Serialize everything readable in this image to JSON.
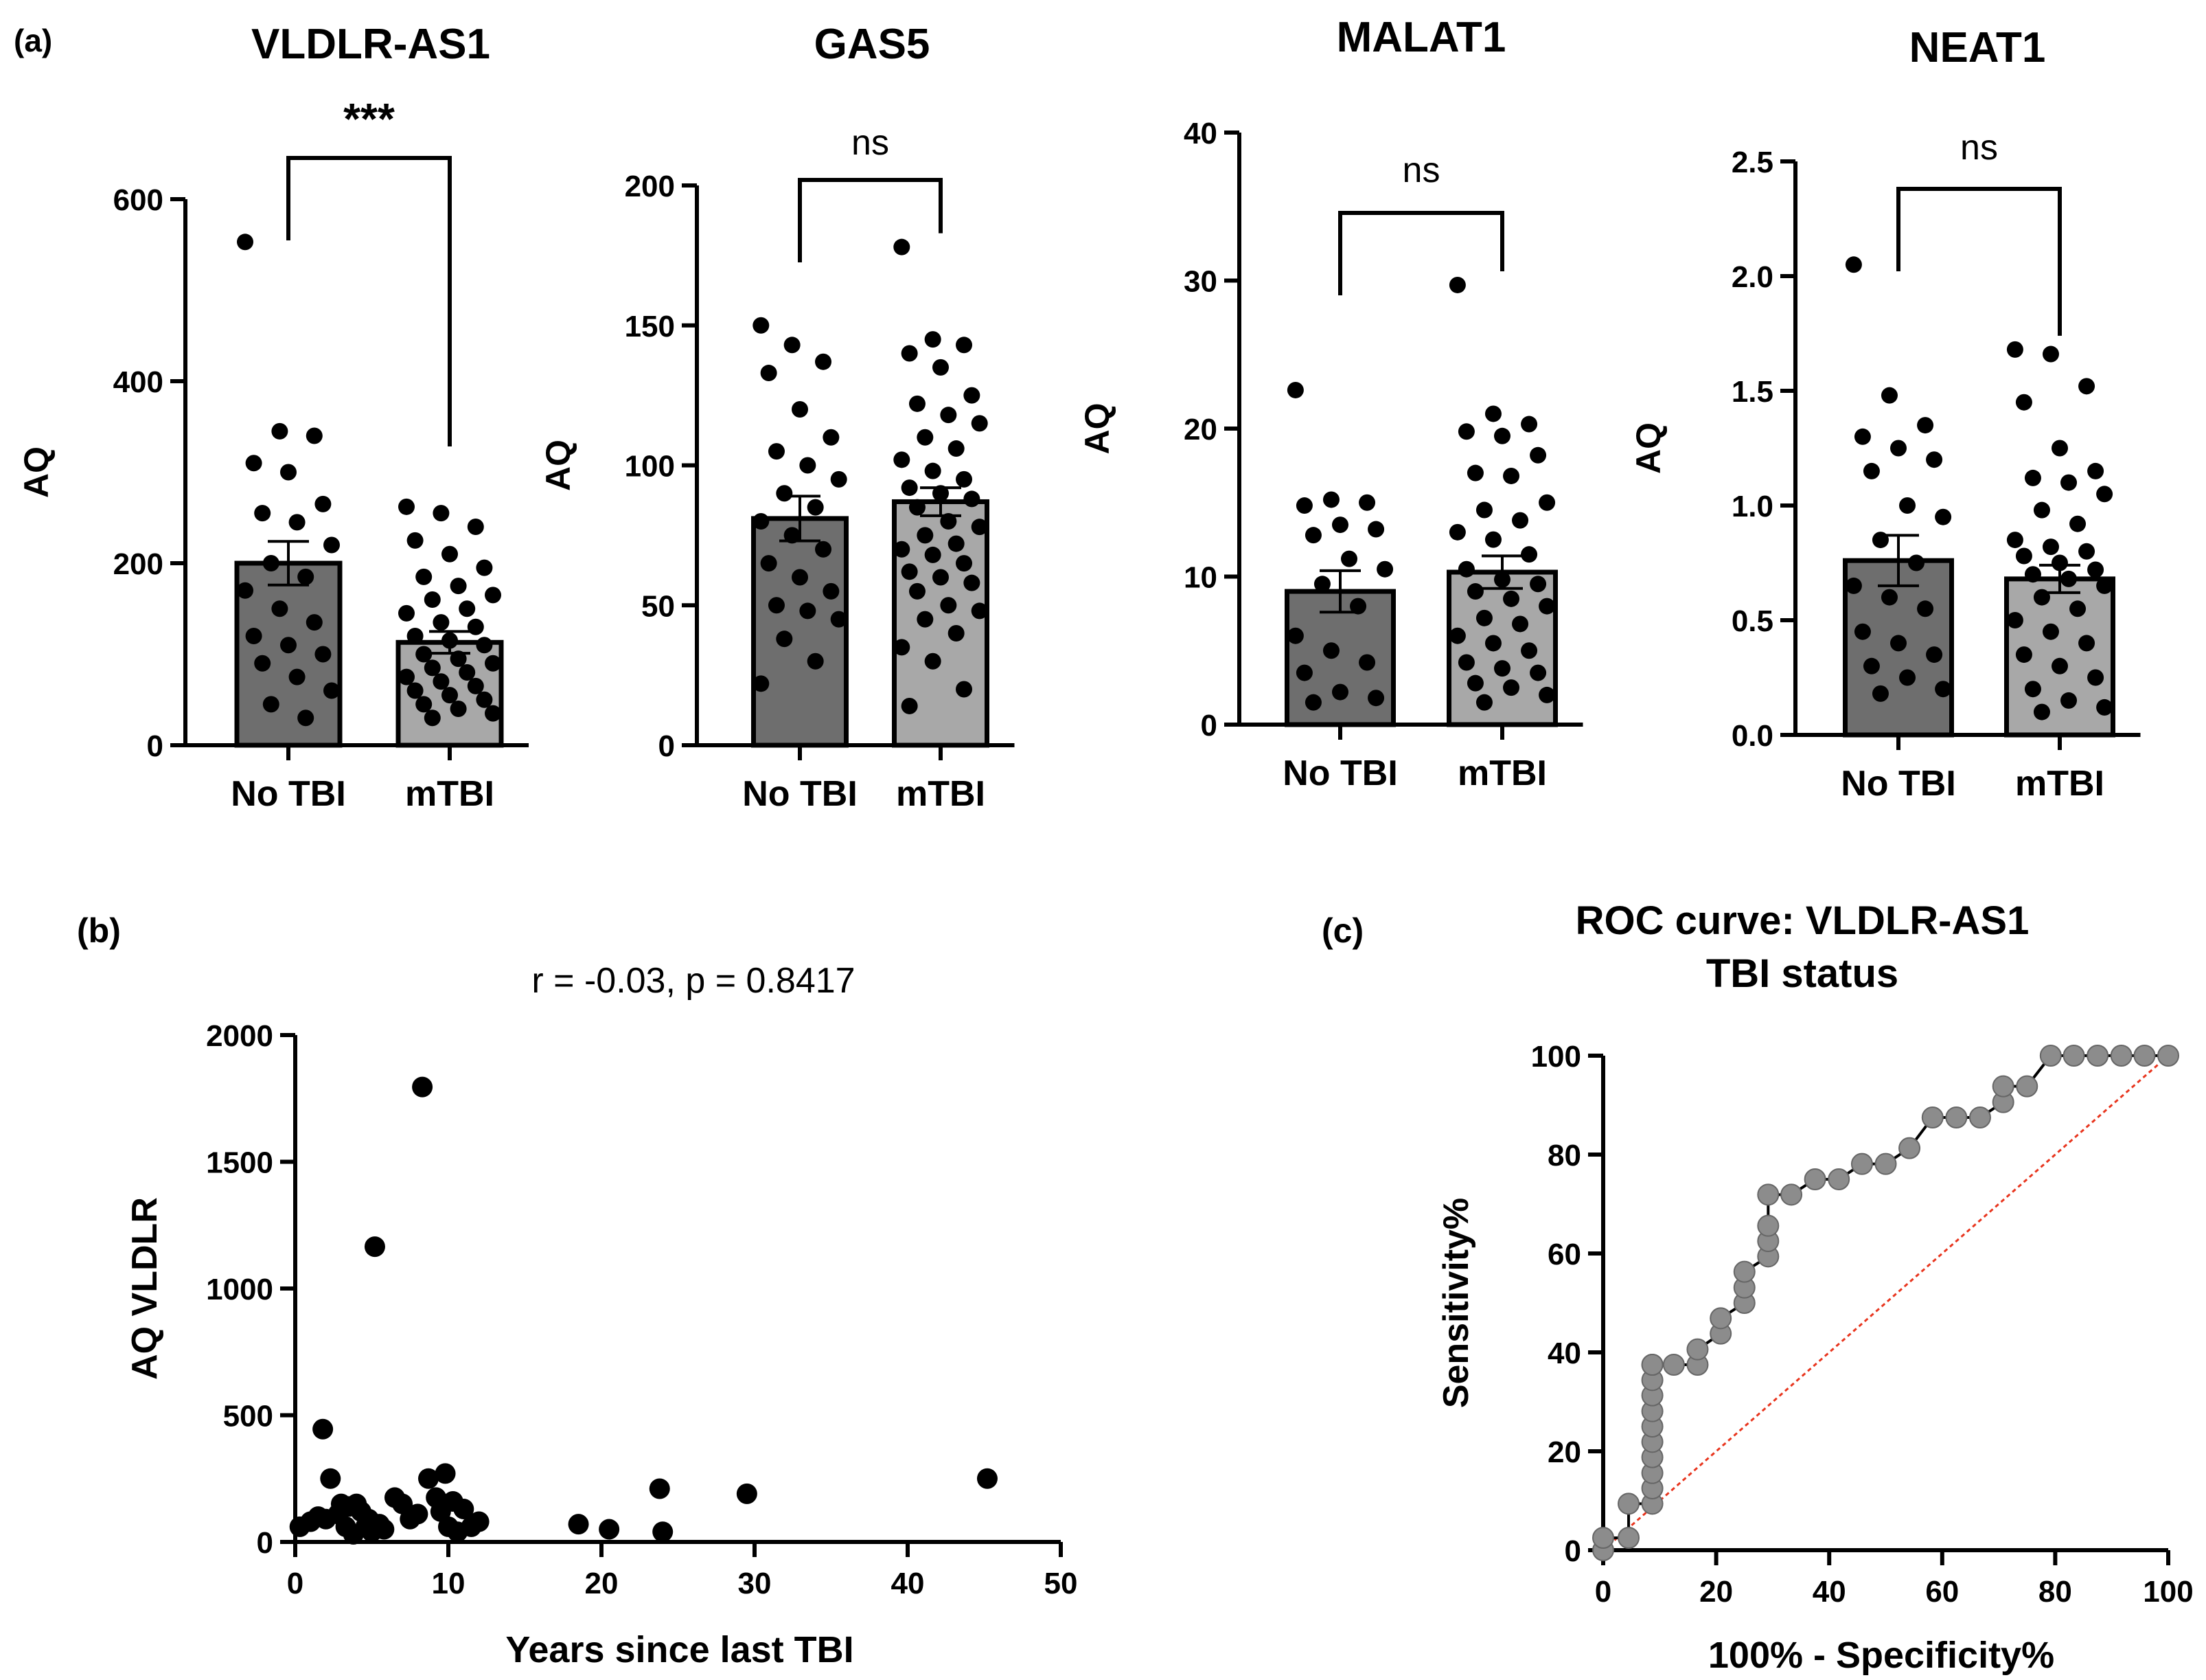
{
  "panel_labels": {
    "a": "(a)",
    "b": "(b)",
    "c": "(c)"
  },
  "colors": {
    "no_tbi_bar": "#6e6e6e",
    "mtbi_bar": "#a8a8a8",
    "point": "#000000",
    "roc_point": "#8c8c8c",
    "diagonal": "#e8351e"
  },
  "chart_data": [
    {
      "type": "bar",
      "title": "VLDLR-AS1",
      "ylabel": "AQ",
      "ylim": [
        0,
        600
      ],
      "yticks": [
        0,
        200,
        400,
        600
      ],
      "categories": [
        "No TBI",
        "mTBI"
      ],
      "values": [
        200,
        113
      ],
      "sem": [
        24,
        12
      ],
      "significance": "***",
      "points": [
        [
          553,
          345,
          340,
          310,
          300,
          265,
          255,
          245,
          220,
          200,
          185,
          170,
          150,
          135,
          120,
          110,
          100,
          90,
          75,
          60,
          45,
          30
        ],
        [
          262,
          255,
          240,
          225,
          210,
          195,
          185,
          175,
          165,
          160,
          150,
          145,
          135,
          130,
          120,
          115,
          110,
          100,
          95,
          90,
          85,
          80,
          75,
          70,
          65,
          60,
          55,
          50,
          45,
          40,
          35,
          30
        ]
      ]
    },
    {
      "type": "bar",
      "title": "GAS5",
      "ylabel": "AQ",
      "ylim": [
        0,
        200
      ],
      "yticks": [
        0,
        50,
        100,
        150,
        200
      ],
      "categories": [
        "No TBI",
        "mTBI"
      ],
      "values": [
        81,
        87
      ],
      "sem": [
        8,
        5
      ],
      "significance": "ns",
      "points": [
        [
          150,
          143,
          137,
          133,
          120,
          110,
          105,
          100,
          95,
          90,
          85,
          80,
          75,
          70,
          65,
          60,
          55,
          50,
          48,
          45,
          38,
          30,
          22
        ],
        [
          178,
          145,
          143,
          140,
          135,
          125,
          122,
          118,
          115,
          110,
          106,
          102,
          98,
          95,
          92,
          90,
          88,
          85,
          80,
          78,
          75,
          72,
          70,
          68,
          65,
          62,
          60,
          58,
          55,
          50,
          48,
          45,
          40,
          35,
          30,
          20,
          14
        ]
      ]
    },
    {
      "type": "bar",
      "title": "MALAT1",
      "ylabel": "AQ",
      "ylim": [
        0,
        40
      ],
      "yticks": [
        0,
        10,
        20,
        30,
        40
      ],
      "categories": [
        "No TBI",
        "mTBI"
      ],
      "values": [
        9.0,
        10.3
      ],
      "sem": [
        1.4,
        1.1
      ],
      "significance": "ns",
      "points": [
        [
          22.6,
          15.2,
          15.0,
          14.8,
          13.5,
          13.2,
          12.8,
          11.2,
          10.5,
          9.5,
          8.0,
          6.0,
          5.0,
          4.2,
          3.5,
          2.2,
          1.8,
          1.5
        ],
        [
          29.7,
          21.0,
          20.3,
          19.8,
          19.5,
          18.2,
          17.0,
          16.8,
          15.0,
          14.5,
          13.8,
          13.0,
          12.5,
          11.5,
          10.5,
          9.8,
          9.5,
          9.0,
          8.5,
          8.0,
          7.2,
          6.8,
          6.0,
          5.5,
          5.0,
          4.2,
          3.8,
          3.5,
          2.8,
          2.5,
          2.0,
          1.5
        ]
      ]
    },
    {
      "type": "bar",
      "title": "NEAT1",
      "ylabel": "AQ",
      "ylim": [
        0,
        2.5
      ],
      "yticks": [
        0.0,
        0.5,
        1.0,
        1.5,
        2.0,
        2.5
      ],
      "ytick_labels": [
        "0.0",
        "0.5",
        "1.0",
        "1.5",
        "2.0",
        "2.5"
      ],
      "categories": [
        "No TBI",
        "mTBI"
      ],
      "values": [
        0.76,
        0.68
      ],
      "sem": [
        0.11,
        0.06
      ],
      "significance": "ns",
      "points": [
        [
          2.05,
          1.48,
          1.35,
          1.3,
          1.25,
          1.2,
          1.15,
          1.0,
          0.95,
          0.85,
          0.75,
          0.65,
          0.6,
          0.55,
          0.45,
          0.4,
          0.35,
          0.3,
          0.25,
          0.2,
          0.18
        ],
        [
          1.68,
          1.66,
          1.52,
          1.45,
          1.25,
          1.15,
          1.12,
          1.1,
          1.05,
          0.98,
          0.92,
          0.85,
          0.82,
          0.8,
          0.78,
          0.75,
          0.72,
          0.7,
          0.68,
          0.65,
          0.6,
          0.55,
          0.5,
          0.45,
          0.4,
          0.35,
          0.3,
          0.25,
          0.2,
          0.15,
          0.12,
          0.1
        ]
      ]
    },
    {
      "type": "scatter",
      "title": "r = -0.03, p = 0.8417",
      "xlabel": "Years since last TBI",
      "ylabel": "AQ VLDLR",
      "xlim": [
        0,
        50
      ],
      "ylim": [
        0,
        2000
      ],
      "xticks": [
        0,
        10,
        20,
        30,
        40,
        50
      ],
      "yticks": [
        0,
        500,
        1000,
        1500,
        2000
      ],
      "points": [
        [
          0.3,
          60
        ],
        [
          1.0,
          80
        ],
        [
          1.5,
          100
        ],
        [
          1.8,
          445
        ],
        [
          2.0,
          90
        ],
        [
          2.3,
          250
        ],
        [
          2.8,
          110
        ],
        [
          3.0,
          150
        ],
        [
          3.3,
          60
        ],
        [
          3.5,
          140
        ],
        [
          3.8,
          30
        ],
        [
          4.0,
          150
        ],
        [
          4.3,
          120
        ],
        [
          4.6,
          60
        ],
        [
          4.8,
          90
        ],
        [
          5.0,
          40
        ],
        [
          5.2,
          1165
        ],
        [
          5.5,
          70
        ],
        [
          5.8,
          50
        ],
        [
          6.5,
          175
        ],
        [
          7.0,
          150
        ],
        [
          7.5,
          90
        ],
        [
          8.0,
          110
        ],
        [
          8.3,
          1795
        ],
        [
          8.7,
          250
        ],
        [
          9.2,
          175
        ],
        [
          9.5,
          120
        ],
        [
          9.8,
          270
        ],
        [
          10.0,
          60
        ],
        [
          10.3,
          160
        ],
        [
          10.6,
          40
        ],
        [
          11.0,
          130
        ],
        [
          11.5,
          60
        ],
        [
          12.0,
          80
        ],
        [
          18.5,
          70
        ],
        [
          20.5,
          50
        ],
        [
          23.8,
          210
        ],
        [
          24.0,
          40
        ],
        [
          29.5,
          190
        ],
        [
          45.2,
          250
        ]
      ]
    },
    {
      "type": "line",
      "title": "ROC curve: VLDLR-AS1",
      "subtitle": "TBI status",
      "xlabel": "100% - Specificity%",
      "ylabel": "Sensitivity%",
      "xlim": [
        0,
        100
      ],
      "ylim": [
        0,
        100
      ],
      "xticks": [
        0,
        20,
        40,
        60,
        80,
        100
      ],
      "yticks": [
        0,
        20,
        40,
        60,
        80,
        100
      ],
      "series": [
        {
          "x": [
            0,
            0,
            4.5,
            4.5,
            8.7,
            8.7,
            8.7,
            8.7,
            8.7,
            8.7,
            8.7,
            8.7,
            8.7,
            8.7,
            8.7,
            12.5,
            16.7,
            16.7,
            20.8,
            20.8,
            25,
            25,
            25,
            29.2,
            29.2,
            29.2,
            29.2,
            33.3,
            37.5,
            41.7,
            45.8,
            50,
            54.2,
            58.3,
            62.5,
            66.7,
            70.8,
            70.8,
            75,
            79.2,
            83.3,
            87.5,
            91.7,
            95.8,
            100
          ],
          "y": [
            0,
            2.5,
            2.5,
            9.4,
            9.4,
            12.5,
            15.6,
            18.8,
            21.9,
            25,
            28.1,
            31.3,
            34.4,
            37.5,
            37.5,
            37.5,
            37.5,
            40.6,
            43.8,
            46.9,
            50,
            53.1,
            56.3,
            59.4,
            62.5,
            65.6,
            71.9,
            71.9,
            75,
            75,
            78.1,
            78.1,
            81.3,
            87.5,
            87.5,
            87.5,
            90.6,
            93.8,
            93.8,
            100,
            100,
            100,
            100,
            100,
            100
          ]
        }
      ],
      "reference_line": [
        [
          0,
          0
        ],
        [
          100,
          100
        ]
      ]
    }
  ]
}
